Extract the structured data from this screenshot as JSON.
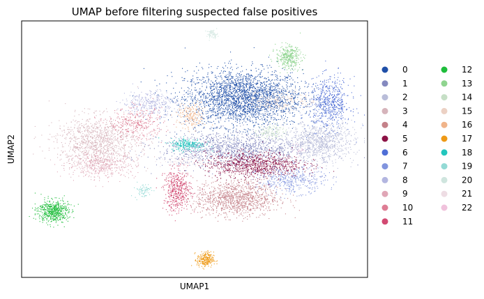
{
  "chart_data": {
    "type": "scatter",
    "title": "UMAP before filtering suspected false positives",
    "xlabel": "UMAP1",
    "ylabel": "UMAP2",
    "xlim": [
      0,
      100
    ],
    "ylim": [
      0,
      100
    ],
    "grid": false,
    "ticks": false,
    "legend_position": "right",
    "legend_columns": 2,
    "series": [
      {
        "name": "0",
        "color": "#1f4fa8",
        "cluster": {
          "x": 64,
          "y": 70,
          "sx": 8.5,
          "sy": 5.5,
          "n": 2600
        }
      },
      {
        "name": "1",
        "color": "#8489bf",
        "cluster": {
          "x": 62,
          "y": 50,
          "sx": 11,
          "sy": 3.5,
          "n": 1400
        }
      },
      {
        "name": "2",
        "color": "#b9bdd9",
        "cluster": {
          "x": 86,
          "y": 53,
          "sx": 5,
          "sy": 4,
          "n": 900
        }
      },
      {
        "name": "3",
        "color": "#d6b4bb",
        "cluster": {
          "x": 22,
          "y": 53,
          "sx": 6,
          "sy": 5,
          "n": 1100
        }
      },
      {
        "name": "4",
        "color": "#c48189",
        "cluster": {
          "x": 62,
          "y": 31,
          "sx": 6,
          "sy": 3.5,
          "n": 1100
        }
      },
      {
        "name": "5",
        "color": "#8c1245",
        "cluster": {
          "x": 67,
          "y": 44,
          "sx": 7,
          "sy": 2.5,
          "n": 900
        }
      },
      {
        "name": "6",
        "color": "#4f6ed6",
        "cluster": {
          "x": 89,
          "y": 68,
          "sx": 3,
          "sy": 5,
          "n": 600
        }
      },
      {
        "name": "7",
        "color": "#8194de",
        "cluster": {
          "x": 78,
          "y": 38,
          "sx": 5,
          "sy": 2.5,
          "n": 400
        }
      },
      {
        "name": "8",
        "color": "#b3b6e0",
        "cluster": {
          "x": 37,
          "y": 68,
          "sx": 4,
          "sy": 2.5,
          "n": 350
        }
      },
      {
        "name": "9",
        "color": "#e0a6b6",
        "cluster": {
          "x": 23,
          "y": 44,
          "sx": 5,
          "sy": 2.5,
          "n": 400
        }
      },
      {
        "name": "10",
        "color": "#de7d94",
        "cluster": {
          "x": 33,
          "y": 60,
          "sx": 4,
          "sy": 3,
          "n": 300
        }
      },
      {
        "name": "11",
        "color": "#d24a72",
        "cluster": {
          "x": 45,
          "y": 34,
          "sx": 2,
          "sy": 4,
          "n": 450
        }
      },
      {
        "name": "12",
        "color": "#1ebd3b",
        "cluster": {
          "x": 9,
          "y": 26,
          "sx": 2.2,
          "sy": 2.2,
          "n": 550
        }
      },
      {
        "name": "13",
        "color": "#8fd48f",
        "cluster": {
          "x": 77,
          "y": 86,
          "sx": 1.8,
          "sy": 2.2,
          "n": 350
        }
      },
      {
        "name": "14",
        "color": "#c6dfc6",
        "cluster": {
          "x": 72,
          "y": 57,
          "sx": 2,
          "sy": 1.5,
          "n": 120
        }
      },
      {
        "name": "15",
        "color": "#ecd1c4",
        "cluster": {
          "x": 75,
          "y": 69,
          "sx": 5,
          "sy": 2,
          "n": 200
        }
      },
      {
        "name": "16",
        "color": "#f0b48a",
        "cluster": {
          "x": 49,
          "y": 63,
          "sx": 2,
          "sy": 2.5,
          "n": 180
        }
      },
      {
        "name": "17",
        "color": "#ee9915",
        "cluster": {
          "x": 53,
          "y": 7,
          "sx": 1.2,
          "sy": 1.5,
          "n": 250
        }
      },
      {
        "name": "18",
        "color": "#22c6bd",
        "cluster": {
          "x": 48,
          "y": 52,
          "sx": 2.5,
          "sy": 1.2,
          "n": 220
        }
      },
      {
        "name": "19",
        "color": "#93dad5",
        "cluster": {
          "x": 35,
          "y": 34,
          "sx": 1.2,
          "sy": 1.5,
          "n": 70
        }
      },
      {
        "name": "20",
        "color": "#cfe5de",
        "cluster": {
          "x": 55,
          "y": 95,
          "sx": 0.8,
          "sy": 0.8,
          "n": 60
        }
      },
      {
        "name": "21",
        "color": "#eedde4",
        "cluster": {
          "x": 46,
          "y": 45,
          "sx": 3,
          "sy": 1,
          "n": 80
        }
      },
      {
        "name": "22",
        "color": "#f0c2dc",
        "cluster": {
          "x": 80,
          "y": 50,
          "sx": 1,
          "sy": 1,
          "n": 20
        }
      }
    ]
  }
}
